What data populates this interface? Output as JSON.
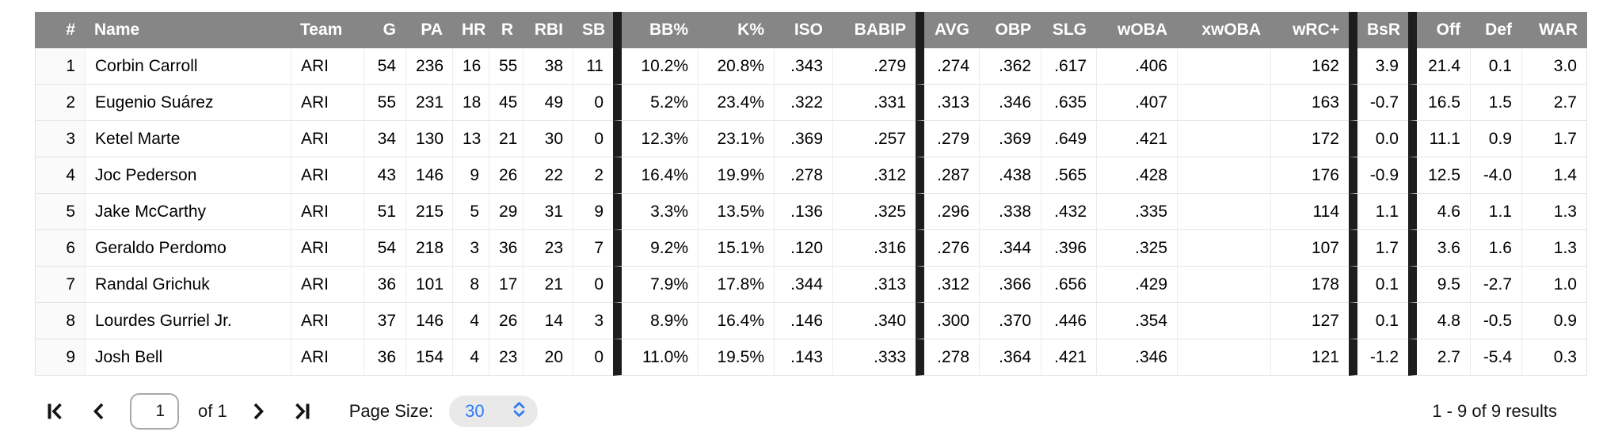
{
  "table": {
    "columns": [
      {
        "key": "rank",
        "label": "#",
        "align": "right"
      },
      {
        "key": "name",
        "label": "Name",
        "align": "left"
      },
      {
        "key": "team",
        "label": "Team",
        "align": "left"
      },
      {
        "key": "g",
        "label": "G",
        "align": "right"
      },
      {
        "key": "pa",
        "label": "PA",
        "align": "right"
      },
      {
        "key": "hr",
        "label": "HR",
        "align": "right"
      },
      {
        "key": "r",
        "label": "R",
        "align": "right"
      },
      {
        "key": "rbi",
        "label": "RBI",
        "align": "right"
      },
      {
        "key": "sb",
        "label": "SB",
        "align": "right"
      },
      {
        "key": "bb_pct",
        "label": "BB%",
        "align": "right",
        "divider_before": true
      },
      {
        "key": "k_pct",
        "label": "K%",
        "align": "right"
      },
      {
        "key": "iso",
        "label": "ISO",
        "align": "right"
      },
      {
        "key": "babip",
        "label": "BABIP",
        "align": "right"
      },
      {
        "key": "avg",
        "label": "AVG",
        "align": "right",
        "divider_before": true
      },
      {
        "key": "obp",
        "label": "OBP",
        "align": "right"
      },
      {
        "key": "slg",
        "label": "SLG",
        "align": "right"
      },
      {
        "key": "woba",
        "label": "wOBA",
        "align": "right"
      },
      {
        "key": "xwoba",
        "label": "xwOBA",
        "align": "right"
      },
      {
        "key": "wrc_plus",
        "label": "wRC+",
        "align": "right"
      },
      {
        "key": "bsr",
        "label": "BsR",
        "align": "right",
        "divider_before": true
      },
      {
        "key": "off",
        "label": "Off",
        "align": "right",
        "divider_before": true
      },
      {
        "key": "def",
        "label": "Def",
        "align": "right"
      },
      {
        "key": "war",
        "label": "WAR",
        "align": "right"
      }
    ],
    "rows": [
      {
        "rank": "1",
        "name": "Corbin Carroll",
        "team": "ARI",
        "g": "54",
        "pa": "236",
        "hr": "16",
        "r": "55",
        "rbi": "38",
        "sb": "11",
        "bb_pct": "10.2%",
        "k_pct": "20.8%",
        "iso": ".343",
        "babip": ".279",
        "avg": ".274",
        "obp": ".362",
        "slg": ".617",
        "woba": ".406",
        "xwoba": "",
        "wrc_plus": "162",
        "bsr": "3.9",
        "off": "21.4",
        "def": "0.1",
        "war": "3.0"
      },
      {
        "rank": "2",
        "name": "Eugenio Suárez",
        "team": "ARI",
        "g": "55",
        "pa": "231",
        "hr": "18",
        "r": "45",
        "rbi": "49",
        "sb": "0",
        "bb_pct": "5.2%",
        "k_pct": "23.4%",
        "iso": ".322",
        "babip": ".331",
        "avg": ".313",
        "obp": ".346",
        "slg": ".635",
        "woba": ".407",
        "xwoba": "",
        "wrc_plus": "163",
        "bsr": "-0.7",
        "off": "16.5",
        "def": "1.5",
        "war": "2.7"
      },
      {
        "rank": "3",
        "name": "Ketel Marte",
        "team": "ARI",
        "g": "34",
        "pa": "130",
        "hr": "13",
        "r": "21",
        "rbi": "30",
        "sb": "0",
        "bb_pct": "12.3%",
        "k_pct": "23.1%",
        "iso": ".369",
        "babip": ".257",
        "avg": ".279",
        "obp": ".369",
        "slg": ".649",
        "woba": ".421",
        "xwoba": "",
        "wrc_plus": "172",
        "bsr": "0.0",
        "off": "11.1",
        "def": "0.9",
        "war": "1.7"
      },
      {
        "rank": "4",
        "name": "Joc Pederson",
        "team": "ARI",
        "g": "43",
        "pa": "146",
        "hr": "9",
        "r": "26",
        "rbi": "22",
        "sb": "2",
        "bb_pct": "16.4%",
        "k_pct": "19.9%",
        "iso": ".278",
        "babip": ".312",
        "avg": ".287",
        "obp": ".438",
        "slg": ".565",
        "woba": ".428",
        "xwoba": "",
        "wrc_plus": "176",
        "bsr": "-0.9",
        "off": "12.5",
        "def": "-4.0",
        "war": "1.4"
      },
      {
        "rank": "5",
        "name": "Jake McCarthy",
        "team": "ARI",
        "g": "51",
        "pa": "215",
        "hr": "5",
        "r": "29",
        "rbi": "31",
        "sb": "9",
        "bb_pct": "3.3%",
        "k_pct": "13.5%",
        "iso": ".136",
        "babip": ".325",
        "avg": ".296",
        "obp": ".338",
        "slg": ".432",
        "woba": ".335",
        "xwoba": "",
        "wrc_plus": "114",
        "bsr": "1.1",
        "off": "4.6",
        "def": "1.1",
        "war": "1.3"
      },
      {
        "rank": "6",
        "name": "Geraldo Perdomo",
        "team": "ARI",
        "g": "54",
        "pa": "218",
        "hr": "3",
        "r": "36",
        "rbi": "23",
        "sb": "7",
        "bb_pct": "9.2%",
        "k_pct": "15.1%",
        "iso": ".120",
        "babip": ".316",
        "avg": ".276",
        "obp": ".344",
        "slg": ".396",
        "woba": ".325",
        "xwoba": "",
        "wrc_plus": "107",
        "bsr": "1.7",
        "off": "3.6",
        "def": "1.6",
        "war": "1.3"
      },
      {
        "rank": "7",
        "name": "Randal Grichuk",
        "team": "ARI",
        "g": "36",
        "pa": "101",
        "hr": "8",
        "r": "17",
        "rbi": "21",
        "sb": "0",
        "bb_pct": "7.9%",
        "k_pct": "17.8%",
        "iso": ".344",
        "babip": ".313",
        "avg": ".312",
        "obp": ".366",
        "slg": ".656",
        "woba": ".429",
        "xwoba": "",
        "wrc_plus": "178",
        "bsr": "0.1",
        "off": "9.5",
        "def": "-2.7",
        "war": "1.0"
      },
      {
        "rank": "8",
        "name": "Lourdes Gurriel Jr.",
        "team": "ARI",
        "g": "37",
        "pa": "146",
        "hr": "4",
        "r": "26",
        "rbi": "14",
        "sb": "3",
        "bb_pct": "8.9%",
        "k_pct": "16.4%",
        "iso": ".146",
        "babip": ".340",
        "avg": ".300",
        "obp": ".370",
        "slg": ".446",
        "woba": ".354",
        "xwoba": "",
        "wrc_plus": "127",
        "bsr": "0.1",
        "off": "4.8",
        "def": "-0.5",
        "war": "0.9"
      },
      {
        "rank": "9",
        "name": "Josh Bell",
        "team": "ARI",
        "g": "36",
        "pa": "154",
        "hr": "4",
        "r": "23",
        "rbi": "20",
        "sb": "0",
        "bb_pct": "11.0%",
        "k_pct": "19.5%",
        "iso": ".143",
        "babip": ".333",
        "avg": ".278",
        "obp": ".364",
        "slg": ".421",
        "woba": ".346",
        "xwoba": "",
        "wrc_plus": "121",
        "bsr": "-1.2",
        "off": "2.7",
        "def": "-5.4",
        "war": "0.3"
      }
    ]
  },
  "pagination": {
    "current_page": "1",
    "page_count_label": "of 1",
    "page_size_label": "Page Size:",
    "page_size_value": "30",
    "results_label": "1 - 9 of 9 results"
  },
  "icons": {
    "first_page": "chevron-bar-left",
    "prev_page": "chevron-left",
    "next_page": "chevron-right",
    "last_page": "chevron-bar-right",
    "page_size": "chevron-up-down"
  },
  "colors": {
    "header_bg": "#868686",
    "header_text": "#ffffff",
    "group_divider": "#1d1d1d",
    "accent_blue": "#2e7cf2",
    "pill_bg": "#e9e9ea"
  }
}
